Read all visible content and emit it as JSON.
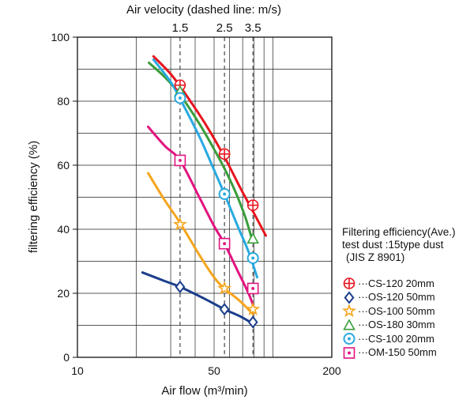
{
  "chart_data": {
    "type": "line",
    "x_axis": {
      "label": "Air flow (m³/min)",
      "scale": "log",
      "range": [
        10,
        200
      ],
      "tick_labels": [
        {
          "value": 10,
          "label": "10"
        },
        {
          "value": 50,
          "label": "50"
        },
        {
          "value": 200,
          "label": "200"
        }
      ],
      "minor_grid": [
        20,
        30,
        40,
        60,
        70,
        80,
        90,
        100
      ]
    },
    "y_axis": {
      "label": "filtering efficiency (%)",
      "range": [
        0,
        100
      ],
      "ticks": [
        0,
        20,
        40,
        60,
        80,
        100
      ]
    },
    "top_axis": {
      "label": "Air velocity (dashed line: m/s)",
      "ticks": [
        {
          "label": "1.5",
          "air_flow": 33.5
        },
        {
          "label": "2.5",
          "air_flow": 56.5
        },
        {
          "label": "3.5",
          "air_flow": 79
        }
      ]
    },
    "grid": true,
    "legend_title": [
      "Filtering efficiency(Ave.)",
      "test dust :15type dust",
      "(JIS Z 8901)"
    ],
    "legend_position": "right",
    "series": [
      {
        "name": "···CS-120 20mm",
        "color": "#e8141e",
        "marker": "circle-cross",
        "curve": [
          [
            24.5,
            94
          ],
          [
            30,
            88.5
          ],
          [
            35,
            83
          ],
          [
            45,
            73
          ],
          [
            56,
            63
          ],
          [
            68,
            53
          ],
          [
            80,
            45
          ],
          [
            92,
            38
          ]
        ],
        "markers": [
          [
            33.5,
            85
          ],
          [
            56.5,
            63.5
          ],
          [
            79,
            47.5
          ]
        ]
      },
      {
        "name": "···OS-120 50mm",
        "color": "#1b3d8c",
        "marker": "diamond",
        "curve": [
          [
            21.5,
            26.5
          ],
          [
            28,
            23.8
          ],
          [
            33.5,
            22
          ],
          [
            45,
            18.2
          ],
          [
            56.5,
            15
          ],
          [
            68,
            12.8
          ],
          [
            79,
            10.5
          ]
        ],
        "markers": [
          [
            33.5,
            22
          ],
          [
            56.5,
            15
          ],
          [
            79,
            11
          ]
        ]
      },
      {
        "name": "···OS-100 50mm",
        "color": "#f5a51c",
        "marker": "star",
        "curve": [
          [
            23,
            57.5
          ],
          [
            28,
            49
          ],
          [
            33.5,
            42
          ],
          [
            42,
            32
          ],
          [
            50,
            25
          ],
          [
            56.5,
            21.5
          ],
          [
            68,
            17.5
          ],
          [
            79,
            13.5
          ]
        ],
        "markers": [
          [
            33.5,
            41.5
          ],
          [
            56.5,
            21.5
          ],
          [
            79,
            15
          ]
        ]
      },
      {
        "name": "···OS-180 30mm",
        "color": "#3a9e3c",
        "marker": "triangle",
        "curve": [
          [
            23.2,
            92
          ],
          [
            28,
            87.5
          ],
          [
            33.5,
            82
          ],
          [
            42,
            73
          ],
          [
            50,
            65
          ],
          [
            56.5,
            59
          ],
          [
            65,
            51
          ],
          [
            72,
            44
          ],
          [
            78,
            37
          ]
        ],
        "markers": [
          [
            33.5,
            83
          ],
          [
            79,
            37
          ]
        ]
      },
      {
        "name": "···CS-100 20mm",
        "color": "#29a9e0",
        "marker": "circle-dot",
        "curve": [
          [
            24.5,
            93
          ],
          [
            30,
            86
          ],
          [
            34,
            80
          ],
          [
            42,
            69
          ],
          [
            50,
            58.5
          ],
          [
            56.5,
            51
          ],
          [
            66,
            41
          ],
          [
            75,
            33
          ],
          [
            83,
            25
          ]
        ],
        "markers": [
          [
            33.5,
            81
          ],
          [
            56.5,
            51
          ],
          [
            79,
            31
          ]
        ]
      },
      {
        "name": "···OM-150 50mm",
        "color": "#e2137f",
        "marker": "square-dot",
        "curve": [
          [
            23,
            72
          ],
          [
            28,
            66
          ],
          [
            33.5,
            61.5
          ],
          [
            42,
            50
          ],
          [
            50,
            41
          ],
          [
            56.5,
            35.5
          ],
          [
            66,
            27
          ],
          [
            75,
            20
          ],
          [
            80,
            15.5
          ]
        ],
        "markers": [
          [
            33.5,
            61.5
          ],
          [
            56.5,
            35.5
          ],
          [
            79,
            21.5
          ]
        ]
      }
    ]
  }
}
